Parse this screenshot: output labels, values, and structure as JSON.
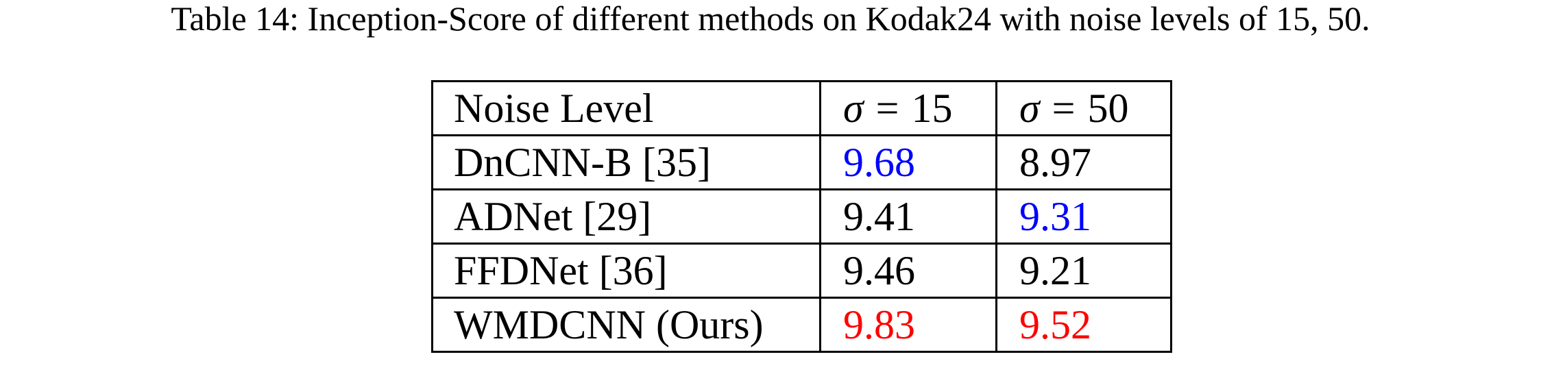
{
  "caption": "Table 14: Inception-Score of different methods on Kodak24 with noise levels of 15, 50.",
  "colors": {
    "best": "#ff0000",
    "second": "#0000ff",
    "default": "#000000"
  },
  "table": {
    "header": {
      "label": "Noise Level",
      "col1": {
        "symbol": "σ",
        "equals": "=",
        "value": "15"
      },
      "col2": {
        "symbol": "σ",
        "equals": "=",
        "value": "50"
      }
    },
    "rows": [
      {
        "method": "DnCNN-B [35]",
        "s15": "9.68",
        "s15_rank": "second",
        "s50": "8.97",
        "s50_rank": "default"
      },
      {
        "method": "ADNet [29]",
        "s15": "9.41",
        "s15_rank": "default",
        "s50": "9.31",
        "s50_rank": "second"
      },
      {
        "method": "FFDNet [36]",
        "s15": "9.46",
        "s15_rank": "default",
        "s50": "9.21",
        "s50_rank": "default"
      },
      {
        "method": "WMDCNN (Ours)",
        "s15": "9.83",
        "s15_rank": "best",
        "s50": "9.52",
        "s50_rank": "best"
      }
    ]
  }
}
